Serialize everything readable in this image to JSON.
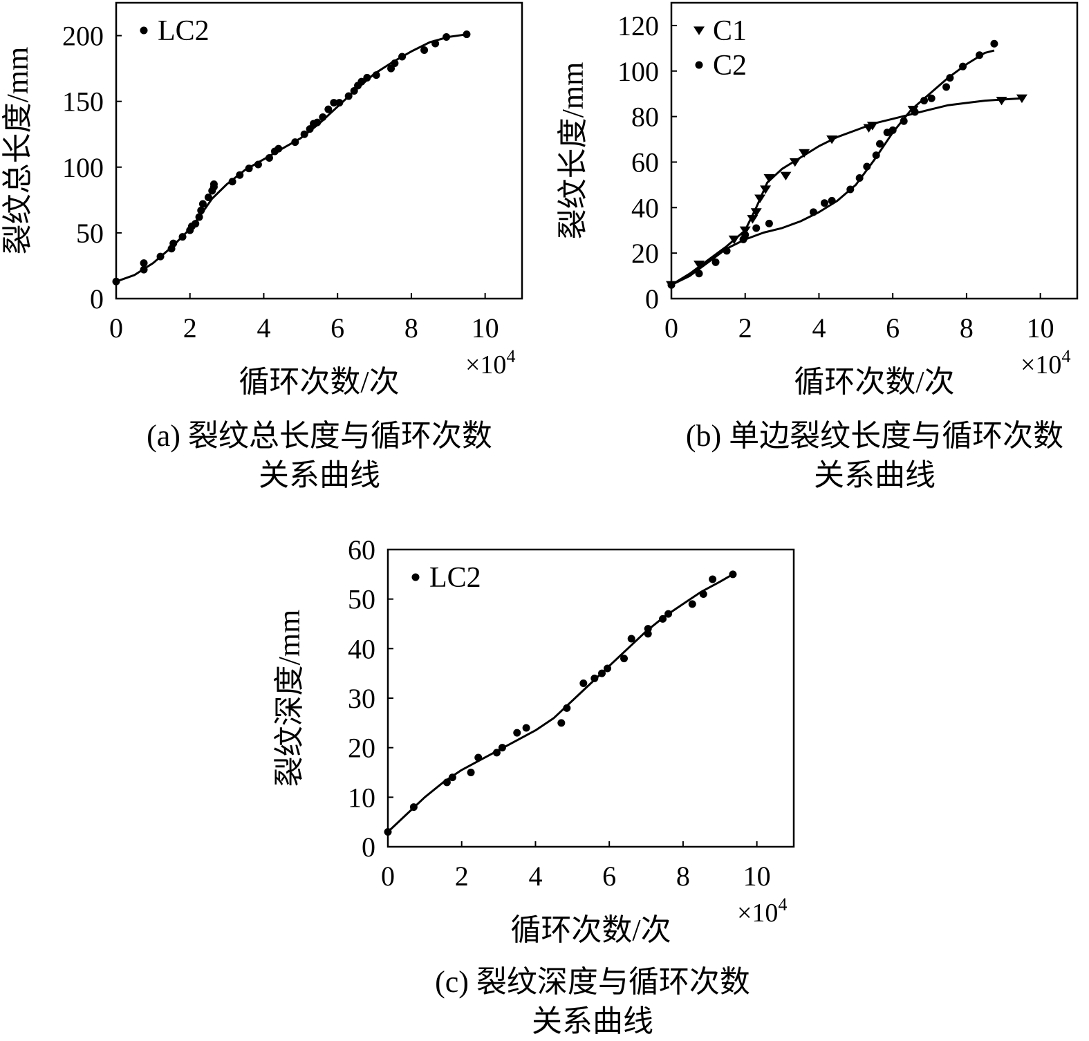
{
  "figure": {
    "charts": [
      {
        "caption_line1": "(a) 裂纹总长度与循环次数",
        "caption_line2": "关系曲线"
      },
      {
        "caption_line1": "(b) 单边裂纹长度与循环次数",
        "caption_line2": "关系曲线"
      },
      {
        "caption_line1": "(c) 裂纹深度与循环次数",
        "caption_line2": "关系曲线"
      }
    ]
  },
  "chart_data": [
    {
      "type": "scatter",
      "xlabel": "循环次数/次",
      "ylabel": "裂纹总长度/mm",
      "x_multiplier": "×10",
      "x_multiplier_exp": "4",
      "xlim": [
        0,
        11
      ],
      "ylim": [
        0,
        225
      ],
      "xticks": [
        0,
        2,
        4,
        6,
        8,
        10
      ],
      "yticks": [
        0,
        50,
        100,
        150,
        200
      ],
      "grid": false,
      "legend_position": "top-left",
      "series": [
        {
          "name": "LC2",
          "marker": "circle",
          "points": [
            [
              0,
              13
            ],
            [
              0.75,
              22
            ],
            [
              0.75,
              27
            ],
            [
              1.2,
              32
            ],
            [
              1.5,
              38
            ],
            [
              1.55,
              42
            ],
            [
              1.8,
              47
            ],
            [
              2.0,
              52
            ],
            [
              2.05,
              55
            ],
            [
              2.15,
              57
            ],
            [
              2.25,
              62
            ],
            [
              2.3,
              67
            ],
            [
              2.35,
              72
            ],
            [
              2.5,
              77
            ],
            [
              2.6,
              82
            ],
            [
              2.65,
              85
            ],
            [
              2.65,
              87
            ],
            [
              3.15,
              89
            ],
            [
              3.35,
              94
            ],
            [
              3.6,
              99
            ],
            [
              3.85,
              102
            ],
            [
              4.15,
              107
            ],
            [
              4.3,
              112
            ],
            [
              4.4,
              114
            ],
            [
              4.85,
              119
            ],
            [
              5.1,
              125
            ],
            [
              5.25,
              129
            ],
            [
              5.35,
              133
            ],
            [
              5.45,
              134
            ],
            [
              5.6,
              138
            ],
            [
              5.75,
              144
            ],
            [
              5.9,
              149
            ],
            [
              6.05,
              149
            ],
            [
              6.3,
              154
            ],
            [
              6.45,
              158
            ],
            [
              6.55,
              162
            ],
            [
              6.65,
              165
            ],
            [
              6.8,
              168
            ],
            [
              7.05,
              170
            ],
            [
              7.45,
              175
            ],
            [
              7.55,
              179
            ],
            [
              7.75,
              184
            ],
            [
              8.35,
              189
            ],
            [
              8.65,
              194
            ],
            [
              8.95,
              199
            ],
            [
              9.5,
              201
            ]
          ],
          "fit": [
            [
              0,
              13
            ],
            [
              0.5,
              18
            ],
            [
              1.0,
              27
            ],
            [
              1.5,
              39
            ],
            [
              2.0,
              53
            ],
            [
              2.3,
              64
            ],
            [
              2.6,
              76
            ],
            [
              3.0,
              87
            ],
            [
              3.5,
              98
            ],
            [
              4.0,
              106
            ],
            [
              4.5,
              114
            ],
            [
              5.0,
              122
            ],
            [
              5.5,
              133
            ],
            [
              6.0,
              146
            ],
            [
              6.5,
              159
            ],
            [
              7.0,
              171
            ],
            [
              7.5,
              180
            ],
            [
              8.0,
              188
            ],
            [
              8.5,
              195
            ],
            [
              9.0,
              199
            ],
            [
              9.5,
              201
            ]
          ]
        }
      ]
    },
    {
      "type": "scatter",
      "xlabel": "循环次数/次",
      "ylabel": "裂纹长度/mm",
      "x_multiplier": "×10",
      "x_multiplier_exp": "4",
      "xlim": [
        0,
        11
      ],
      "ylim": [
        0,
        130
      ],
      "xticks": [
        0,
        2,
        4,
        6,
        8,
        10
      ],
      "yticks": [
        0,
        20,
        40,
        60,
        80,
        100,
        120
      ],
      "grid": false,
      "legend_position": "top-left",
      "series": [
        {
          "name": "C1",
          "marker": "triangle-down",
          "points": [
            [
              0,
              6
            ],
            [
              0.75,
              15
            ],
            [
              1.7,
              26
            ],
            [
              2.0,
              30
            ],
            [
              2.2,
              35
            ],
            [
              2.3,
              38
            ],
            [
              2.4,
              44
            ],
            [
              2.55,
              48
            ],
            [
              2.65,
              53
            ],
            [
              3.1,
              54
            ],
            [
              3.35,
              60
            ],
            [
              3.6,
              64
            ],
            [
              4.35,
              70
            ],
            [
              5.35,
              75
            ],
            [
              5.45,
              76
            ],
            [
              6.55,
              83
            ],
            [
              8.95,
              87
            ],
            [
              9.5,
              88
            ]
          ],
          "fit": [
            [
              0,
              6
            ],
            [
              0.5,
              11
            ],
            [
              1.0,
              17
            ],
            [
              1.5,
              23
            ],
            [
              2.0,
              30
            ],
            [
              2.3,
              40
            ],
            [
              2.6,
              51
            ],
            [
              3.0,
              57
            ],
            [
              3.5,
              62
            ],
            [
              4.0,
              67
            ],
            [
              4.5,
              71
            ],
            [
              5.0,
              74
            ],
            [
              5.5,
              77
            ],
            [
              6.0,
              79
            ],
            [
              6.5,
              81
            ],
            [
              7.0,
              83
            ],
            [
              7.5,
              85
            ],
            [
              8.0,
              86
            ],
            [
              8.5,
              87
            ],
            [
              9.0,
              87.5
            ],
            [
              9.5,
              88
            ]
          ]
        },
        {
          "name": "C2",
          "marker": "circle",
          "points": [
            [
              0,
              6
            ],
            [
              0.75,
              11
            ],
            [
              1.2,
              16
            ],
            [
              1.5,
              21
            ],
            [
              1.95,
              26
            ],
            [
              2.0,
              28
            ],
            [
              2.3,
              31
            ],
            [
              2.65,
              33
            ],
            [
              3.85,
              38
            ],
            [
              4.15,
              42
            ],
            [
              4.35,
              43
            ],
            [
              4.85,
              48
            ],
            [
              5.1,
              53
            ],
            [
              5.3,
              58
            ],
            [
              5.55,
              63
            ],
            [
              5.65,
              68
            ],
            [
              5.85,
              73
            ],
            [
              6.0,
              74
            ],
            [
              6.3,
              78
            ],
            [
              6.6,
              82
            ],
            [
              6.85,
              87
            ],
            [
              7.05,
              88
            ],
            [
              7.45,
              93
            ],
            [
              7.55,
              97
            ],
            [
              7.9,
              102
            ],
            [
              8.35,
              107
            ],
            [
              8.75,
              112
            ]
          ],
          "fit": [
            [
              0,
              6
            ],
            [
              0.5,
              10
            ],
            [
              1.0,
              16
            ],
            [
              1.5,
              22
            ],
            [
              2.0,
              26
            ],
            [
              2.5,
              29
            ],
            [
              3.0,
              31
            ],
            [
              3.5,
              34
            ],
            [
              4.0,
              38
            ],
            [
              4.5,
              43
            ],
            [
              5.0,
              50
            ],
            [
              5.5,
              61
            ],
            [
              6.0,
              73
            ],
            [
              6.5,
              83
            ],
            [
              7.0,
              90
            ],
            [
              7.5,
              97
            ],
            [
              8.0,
              103
            ],
            [
              8.5,
              108
            ],
            [
              8.75,
              109
            ]
          ]
        }
      ]
    },
    {
      "type": "scatter",
      "xlabel": "循环次数/次",
      "ylabel": "裂纹深度/mm",
      "x_multiplier": "×10",
      "x_multiplier_exp": "4",
      "xlim": [
        0,
        11
      ],
      "ylim": [
        0,
        60
      ],
      "xticks": [
        0,
        2,
        4,
        6,
        8,
        10
      ],
      "yticks": [
        0,
        10,
        20,
        30,
        40,
        50,
        60
      ],
      "grid": false,
      "legend_position": "top-left",
      "series": [
        {
          "name": "LC2",
          "marker": "circle",
          "points": [
            [
              0,
              3
            ],
            [
              0.7,
              8
            ],
            [
              1.6,
              13
            ],
            [
              1.75,
              14
            ],
            [
              2.25,
              15
            ],
            [
              2.45,
              18
            ],
            [
              2.95,
              19
            ],
            [
              3.1,
              20
            ],
            [
              3.5,
              23
            ],
            [
              3.75,
              24
            ],
            [
              4.7,
              25
            ],
            [
              4.85,
              28
            ],
            [
              5.3,
              33
            ],
            [
              5.6,
              34
            ],
            [
              5.8,
              35
            ],
            [
              5.95,
              36
            ],
            [
              6.4,
              38
            ],
            [
              6.6,
              42
            ],
            [
              7.05,
              43
            ],
            [
              7.05,
              44
            ],
            [
              7.45,
              46
            ],
            [
              7.6,
              47
            ],
            [
              8.25,
              49
            ],
            [
              8.55,
              51
            ],
            [
              8.8,
              54
            ],
            [
              9.35,
              55
            ]
          ],
          "fit": [
            [
              0,
              3
            ],
            [
              0.5,
              6.5
            ],
            [
              1.0,
              10
            ],
            [
              1.5,
              13
            ],
            [
              2.0,
              15.5
            ],
            [
              2.5,
              17.5
            ],
            [
              3.0,
              19.5
            ],
            [
              3.5,
              21.5
            ],
            [
              4.0,
              23.5
            ],
            [
              4.5,
              26
            ],
            [
              5.0,
              29.5
            ],
            [
              5.5,
              33
            ],
            [
              6.0,
              36.5
            ],
            [
              6.5,
              40
            ],
            [
              7.0,
              43.5
            ],
            [
              7.5,
              46.5
            ],
            [
              8.0,
              49
            ],
            [
              8.5,
              51.5
            ],
            [
              9.0,
              53.5
            ],
            [
              9.35,
              55
            ]
          ]
        }
      ]
    }
  ]
}
